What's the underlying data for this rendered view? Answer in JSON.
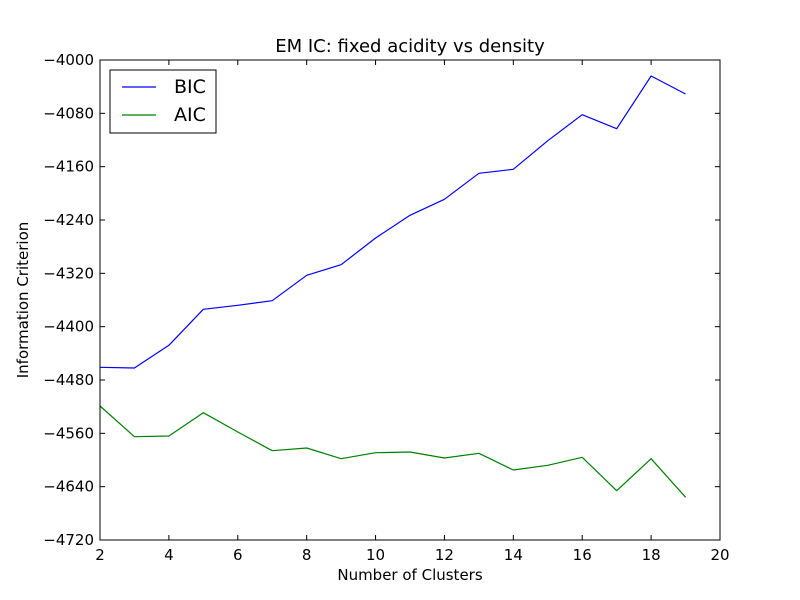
{
  "chart_data": {
    "type": "line",
    "title": "EM IC: fixed acidity vs density",
    "xlabel": "Number of Clusters",
    "ylabel": "Information Criterion",
    "xlim": [
      2,
      20
    ],
    "ylim": [
      -4720,
      -4000
    ],
    "xticks": [
      2,
      4,
      6,
      8,
      10,
      12,
      14,
      16,
      18,
      20
    ],
    "yticks": [
      -4000,
      -4080,
      -4160,
      -4240,
      -4320,
      -4400,
      -4480,
      -4560,
      -4640,
      -4720
    ],
    "xtick_labels": [
      "2",
      "4",
      "6",
      "8",
      "10",
      "12",
      "14",
      "16",
      "18",
      "20"
    ],
    "ytick_labels": [
      "−4000",
      "−4080",
      "−4160",
      "−4240",
      "−4320",
      "−4400",
      "−4480",
      "−4560",
      "−4640",
      "−4720"
    ],
    "grid": false,
    "legend_position": "top-left",
    "x": [
      2,
      3,
      4,
      5,
      6,
      7,
      8,
      9,
      10,
      11,
      12,
      13,
      14,
      15,
      16,
      17,
      18,
      19
    ],
    "series": [
      {
        "name": "BIC",
        "color": "#0000ff",
        "values": [
          -4461,
          -4462,
          -4428,
          -4374,
          -4368,
          -4361,
          -4323,
          -4307,
          -4267,
          -4233,
          -4209,
          -4170,
          -4164,
          -4121,
          -4082,
          -4103,
          -4024,
          -4051
        ]
      },
      {
        "name": "AIC",
        "color": "#008000",
        "values": [
          -4519,
          -4565,
          -4564,
          -4529,
          -4558,
          -4586,
          -4582,
          -4598,
          -4589,
          -4588,
          -4597,
          -4590,
          -4615,
          -4608,
          -4596,
          -4646,
          -4598,
          -4656
        ]
      }
    ]
  }
}
